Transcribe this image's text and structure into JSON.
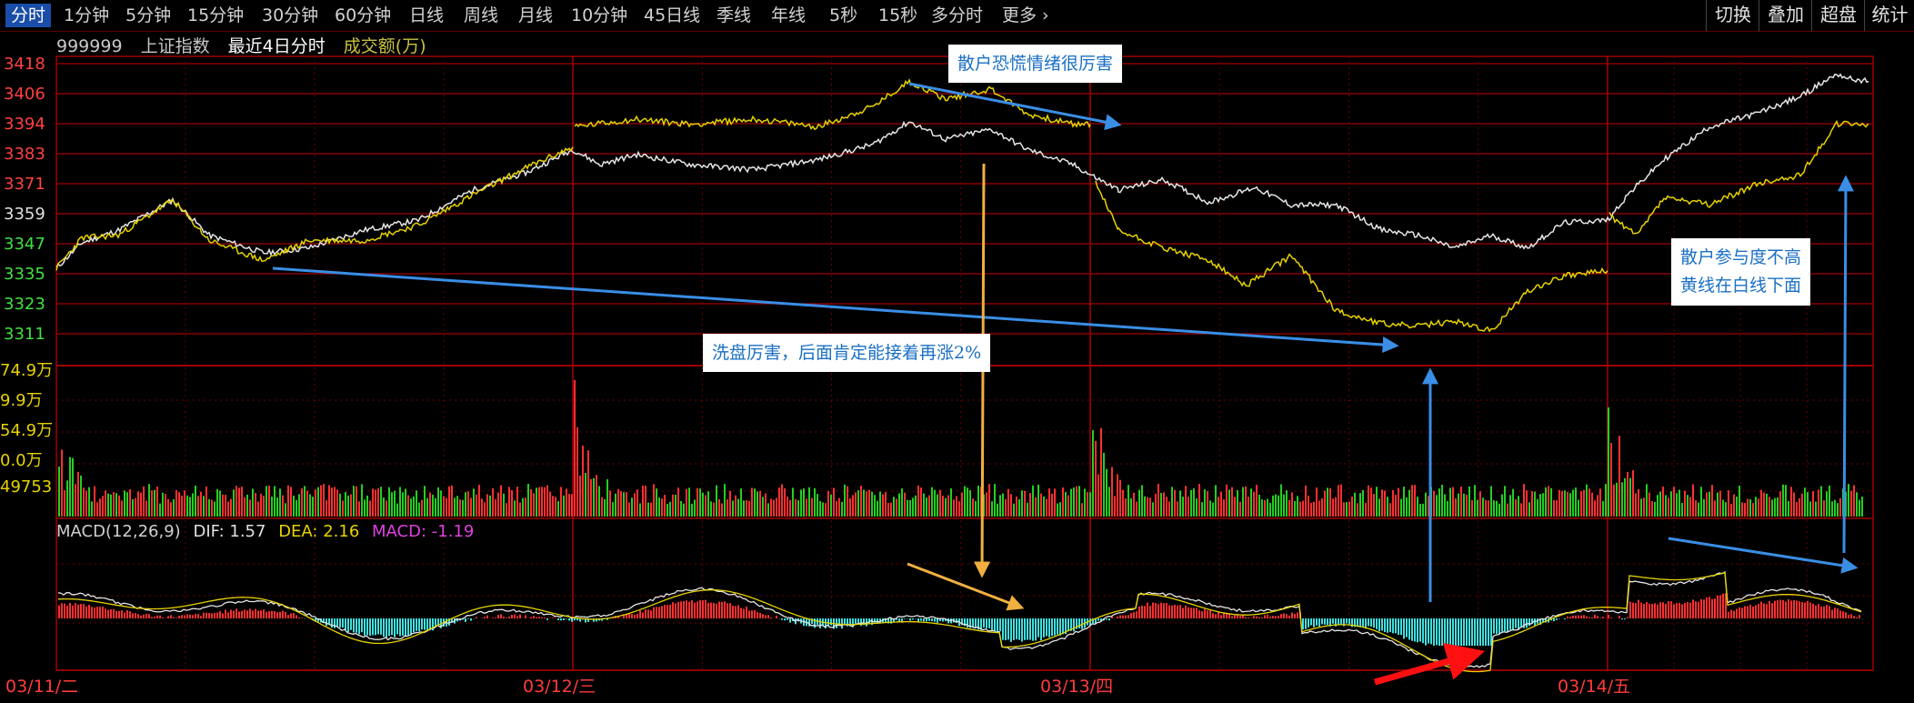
{
  "toolbar": {
    "items": [
      "分时",
      "1分钟",
      "5分钟",
      "15分钟",
      "30分钟",
      "60分钟",
      "日线",
      "周线",
      "月线",
      "10分钟",
      "45日线",
      "季线",
      "年线",
      "5秒",
      "15秒",
      "多分时",
      "更多"
    ],
    "active": "分时",
    "right": [
      "切换",
      "叠加",
      "超盘",
      "统计"
    ]
  },
  "info": {
    "code": "999999",
    "name": "上证指数",
    "period": "最近4日分时",
    "volume_label": "成交额(万)"
  },
  "price_axis": {
    "labels": [
      "3418",
      "3406",
      "3394",
      "3383",
      "3371",
      "3359",
      "3347",
      "3335",
      "3323",
      "3311"
    ],
    "colors": {
      "up": "#ff4040",
      "mid": "#e0e0e0",
      "down": "#40e040"
    }
  },
  "volume_axis": {
    "labels": [
      "74.9万",
      "9.9万",
      "54.9万",
      "0.0万",
      "49753"
    ]
  },
  "macd": {
    "label": "MACD(12,26,9)",
    "dif": "DIF: 1.57",
    "dea": "DEA: 2.16",
    "macd": "MACD: -1.19"
  },
  "dates": [
    "03/11/二",
    "03/12/三",
    "03/13/四",
    "03/14/五"
  ],
  "annotations": {
    "a1": "散户恐慌情绪很厉害",
    "a2": "洗盘厉害，后面肯定能接着再涨2%",
    "a3_line1": "散户参与度不高",
    "a3_line2": "黄线在白线下面"
  },
  "colors": {
    "white_line": "#e6e6e6",
    "yellow_line": "#e6d200",
    "grid_red": "#a00000",
    "vol_up": "#ff3030",
    "vol_down": "#20d020",
    "macd_up": "#ff3030",
    "macd_down": "#40e0e0",
    "arrow_blue": "#3a8ee6",
    "arrow_orange": "#f0b040",
    "arrow_red": "#ff1010"
  }
}
